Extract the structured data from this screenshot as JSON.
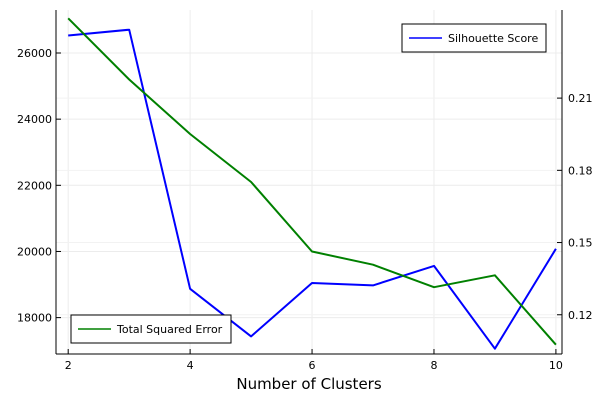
{
  "chart_data": {
    "type": "line",
    "xlabel": "Number of Clusters",
    "x": [
      2,
      3,
      4,
      5,
      6,
      7,
      8,
      9,
      10
    ],
    "xlim": [
      1.8,
      10.1
    ],
    "xticks": [
      2,
      4,
      6,
      8,
      10
    ],
    "ylim_left": [
      16900,
      27300
    ],
    "yticks_left": [
      18000,
      20000,
      22000,
      24000,
      26000
    ],
    "ylim_right": [
      0.1037,
      0.2466
    ],
    "yticks_right": [
      "0.12",
      "0.15",
      "0.18",
      "0.21"
    ],
    "grid": true,
    "series": [
      {
        "name": "Silhouette Score",
        "axis": "right",
        "color": "#0000ff",
        "legend": "top-right",
        "values": [
          0.236,
          0.2384,
          0.1308,
          0.111,
          0.1332,
          0.1322,
          0.1403,
          0.1059,
          0.1474
        ]
      },
      {
        "name": "Total Squared Error",
        "axis": "left",
        "color": "#008000",
        "legend": "bottom-left",
        "values": [
          27050,
          25200,
          23550,
          22100,
          20000,
          19600,
          18920,
          19280,
          17180
        ]
      }
    ]
  }
}
